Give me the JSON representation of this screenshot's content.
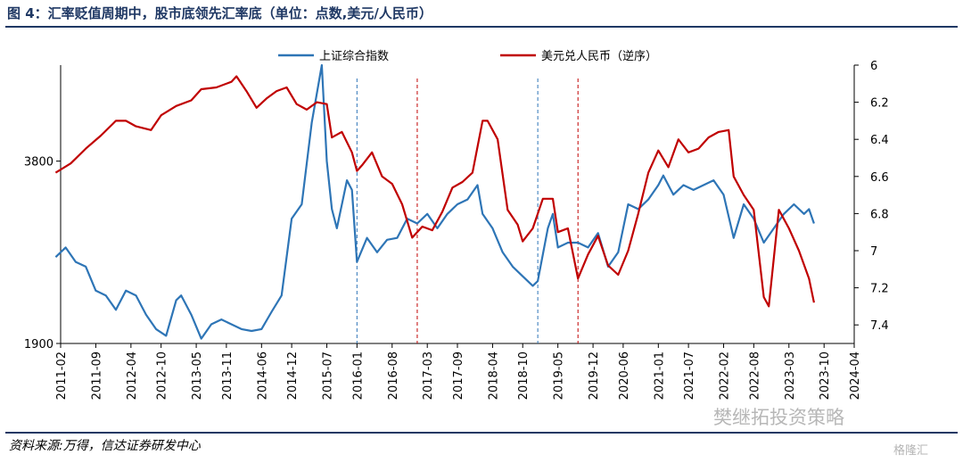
{
  "title": "图 4：汇率贬值周期中，股市底领先汇率底（单位：点数,美元/人民币）",
  "source": "资料来源:万得，信达证券研发中心",
  "watermark": "樊继拓投资策略",
  "watermark2": "格隆汇",
  "colors": {
    "sse": "#2e75b6",
    "usdcny": "#c00000",
    "frame": "#1f3864"
  },
  "chart_data": {
    "type": "line",
    "x_ticks": [
      "2011-02",
      "2011-09",
      "2012-04",
      "2012-10",
      "2013-05",
      "2013-11",
      "2014-06",
      "2014-12",
      "2015-07",
      "2016-01",
      "2016-08",
      "2017-03",
      "2017-09",
      "2018-04",
      "2018-10",
      "2019-05",
      "2019-12",
      "2020-06",
      "2021-01",
      "2021-07",
      "2022-02",
      "2022-08",
      "2023-03",
      "2023-10",
      "2024-04"
    ],
    "left_axis": {
      "ticks": [
        "3800",
        "1900"
      ],
      "range": [
        1900,
        4800
      ]
    },
    "right_axis": {
      "ticks": [
        "6",
        "6.2",
        "6.4",
        "6.6",
        "6.8",
        "7",
        "7.2",
        "7.4"
      ],
      "range": [
        7.5,
        6.0
      ],
      "reversed": true
    },
    "markers": [
      {
        "date": "2016-01",
        "color": "#2e75b6"
      },
      {
        "date": "2017-01",
        "color": "#c00000"
      },
      {
        "date": "2019-01",
        "color": "#2e75b6"
      },
      {
        "date": "2019-09",
        "color": "#c00000"
      }
    ],
    "series": [
      {
        "name": "上证综合指数",
        "axis": "left",
        "points": [
          [
            "2011-01",
            2800
          ],
          [
            "2011-03",
            2900
          ],
          [
            "2011-05",
            2750
          ],
          [
            "2011-07",
            2700
          ],
          [
            "2011-09",
            2450
          ],
          [
            "2011-11",
            2400
          ],
          [
            "2012-01",
            2250
          ],
          [
            "2012-03",
            2450
          ],
          [
            "2012-05",
            2400
          ],
          [
            "2012-07",
            2200
          ],
          [
            "2012-09",
            2050
          ],
          [
            "2012-11",
            1980
          ],
          [
            "2013-01",
            2350
          ],
          [
            "2013-02",
            2400
          ],
          [
            "2013-04",
            2200
          ],
          [
            "2013-06",
            1950
          ],
          [
            "2013-08",
            2100
          ],
          [
            "2013-10",
            2150
          ],
          [
            "2013-12",
            2100
          ],
          [
            "2014-02",
            2050
          ],
          [
            "2014-04",
            2030
          ],
          [
            "2014-06",
            2050
          ],
          [
            "2014-08",
            2230
          ],
          [
            "2014-10",
            2400
          ],
          [
            "2014-12",
            3200
          ],
          [
            "2015-02",
            3350
          ],
          [
            "2015-04",
            4200
          ],
          [
            "2015-06",
            4800
          ],
          [
            "2015-07",
            3800
          ],
          [
            "2015-08",
            3300
          ],
          [
            "2015-09",
            3100
          ],
          [
            "2015-11",
            3600
          ],
          [
            "2015-12",
            3500
          ],
          [
            "2016-01",
            2750
          ],
          [
            "2016-03",
            3000
          ],
          [
            "2016-05",
            2850
          ],
          [
            "2016-07",
            2980
          ],
          [
            "2016-09",
            3000
          ],
          [
            "2016-11",
            3200
          ],
          [
            "2017-01",
            3150
          ],
          [
            "2017-03",
            3250
          ],
          [
            "2017-05",
            3100
          ],
          [
            "2017-07",
            3250
          ],
          [
            "2017-09",
            3350
          ],
          [
            "2017-11",
            3400
          ],
          [
            "2018-01",
            3550
          ],
          [
            "2018-02",
            3250
          ],
          [
            "2018-04",
            3100
          ],
          [
            "2018-06",
            2850
          ],
          [
            "2018-08",
            2700
          ],
          [
            "2018-10",
            2600
          ],
          [
            "2018-12",
            2500
          ],
          [
            "2019-01",
            2550
          ],
          [
            "2019-03",
            3100
          ],
          [
            "2019-04",
            3250
          ],
          [
            "2019-05",
            2900
          ],
          [
            "2019-07",
            2950
          ],
          [
            "2019-09",
            2950
          ],
          [
            "2019-11",
            2900
          ],
          [
            "2020-01",
            3050
          ],
          [
            "2020-03",
            2700
          ],
          [
            "2020-05",
            2850
          ],
          [
            "2020-07",
            3350
          ],
          [
            "2020-09",
            3300
          ],
          [
            "2020-11",
            3400
          ],
          [
            "2021-01",
            3550
          ],
          [
            "2021-02",
            3650
          ],
          [
            "2021-04",
            3450
          ],
          [
            "2021-06",
            3550
          ],
          [
            "2021-08",
            3500
          ],
          [
            "2021-10",
            3550
          ],
          [
            "2021-12",
            3600
          ],
          [
            "2022-02",
            3450
          ],
          [
            "2022-04",
            3000
          ],
          [
            "2022-06",
            3350
          ],
          [
            "2022-08",
            3200
          ],
          [
            "2022-10",
            2950
          ],
          [
            "2022-12",
            3100
          ],
          [
            "2023-02",
            3250
          ],
          [
            "2023-04",
            3350
          ],
          [
            "2023-06",
            3250
          ],
          [
            "2023-07",
            3300
          ],
          [
            "2023-08",
            3150
          ]
        ]
      },
      {
        "name": "美元兑人民币（逆序）",
        "axis": "right",
        "points": [
          [
            "2011-01",
            6.58
          ],
          [
            "2011-04",
            6.53
          ],
          [
            "2011-07",
            6.45
          ],
          [
            "2011-10",
            6.38
          ],
          [
            "2012-01",
            6.3
          ],
          [
            "2012-03",
            6.3
          ],
          [
            "2012-05",
            6.33
          ],
          [
            "2012-08",
            6.35
          ],
          [
            "2012-10",
            6.27
          ],
          [
            "2013-01",
            6.22
          ],
          [
            "2013-04",
            6.19
          ],
          [
            "2013-06",
            6.13
          ],
          [
            "2013-09",
            6.12
          ],
          [
            "2013-12",
            6.09
          ],
          [
            "2014-01",
            6.06
          ],
          [
            "2014-03",
            6.14
          ],
          [
            "2014-05",
            6.23
          ],
          [
            "2014-07",
            6.18
          ],
          [
            "2014-09",
            6.14
          ],
          [
            "2014-11",
            6.12
          ],
          [
            "2015-01",
            6.21
          ],
          [
            "2015-03",
            6.24
          ],
          [
            "2015-05",
            6.2
          ],
          [
            "2015-07",
            6.21
          ],
          [
            "2015-08",
            6.39
          ],
          [
            "2015-10",
            6.36
          ],
          [
            "2015-12",
            6.47
          ],
          [
            "2016-01",
            6.57
          ],
          [
            "2016-02",
            6.54
          ],
          [
            "2016-04",
            6.47
          ],
          [
            "2016-06",
            6.6
          ],
          [
            "2016-08",
            6.64
          ],
          [
            "2016-10",
            6.75
          ],
          [
            "2016-12",
            6.93
          ],
          [
            "2017-02",
            6.87
          ],
          [
            "2017-04",
            6.89
          ],
          [
            "2017-06",
            6.79
          ],
          [
            "2017-08",
            6.66
          ],
          [
            "2017-10",
            6.63
          ],
          [
            "2017-12",
            6.58
          ],
          [
            "2018-02",
            6.3
          ],
          [
            "2018-03",
            6.3
          ],
          [
            "2018-05",
            6.4
          ],
          [
            "2018-07",
            6.78
          ],
          [
            "2018-09",
            6.86
          ],
          [
            "2018-10",
            6.95
          ],
          [
            "2018-12",
            6.88
          ],
          [
            "2019-02",
            6.72
          ],
          [
            "2019-04",
            6.72
          ],
          [
            "2019-05",
            6.9
          ],
          [
            "2019-07",
            6.88
          ],
          [
            "2019-09",
            7.15
          ],
          [
            "2019-11",
            7.02
          ],
          [
            "2020-01",
            6.92
          ],
          [
            "2020-03",
            7.08
          ],
          [
            "2020-05",
            7.13
          ],
          [
            "2020-07",
            7.0
          ],
          [
            "2020-09",
            6.8
          ],
          [
            "2020-11",
            6.58
          ],
          [
            "2021-01",
            6.46
          ],
          [
            "2021-03",
            6.55
          ],
          [
            "2021-05",
            6.4
          ],
          [
            "2021-07",
            6.47
          ],
          [
            "2021-09",
            6.45
          ],
          [
            "2021-11",
            6.39
          ],
          [
            "2022-01",
            6.36
          ],
          [
            "2022-03",
            6.35
          ],
          [
            "2022-04",
            6.6
          ],
          [
            "2022-06",
            6.7
          ],
          [
            "2022-08",
            6.78
          ],
          [
            "2022-10",
            7.25
          ],
          [
            "2022-11",
            7.3
          ],
          [
            "2023-01",
            6.78
          ],
          [
            "2023-03",
            6.88
          ],
          [
            "2023-05",
            7.0
          ],
          [
            "2023-07",
            7.15
          ],
          [
            "2023-08",
            7.28
          ]
        ]
      }
    ]
  }
}
